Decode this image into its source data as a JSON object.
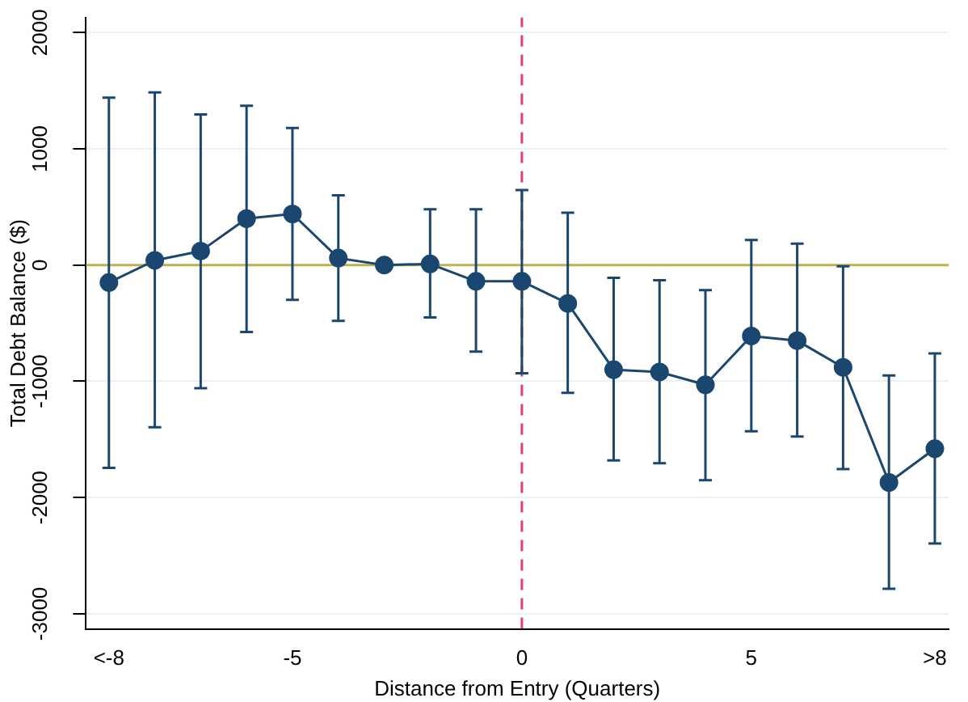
{
  "chart_data": {
    "type": "line",
    "xlabel": "Distance from Entry (Quarters)",
    "ylabel": "Total Debt Balance ($)",
    "x": [
      -9,
      -8,
      -7,
      -6,
      -5,
      -4,
      -3,
      -2,
      -1,
      0,
      1,
      2,
      3,
      4,
      5,
      6,
      7,
      8,
      9
    ],
    "series": [
      {
        "color": "#1a476f",
        "values": [
          -150,
          40,
          120,
          400,
          440,
          60,
          0,
          10,
          -140,
          -140,
          -330,
          -900,
          -920,
          -1030,
          -610,
          -650,
          -880,
          -1870,
          -1580
        ],
        "errors": [
          [
            -1745,
            1440
          ],
          [
            -1395,
            1485
          ],
          [
            -1060,
            1295
          ],
          [
            -575,
            1370
          ],
          [
            -300,
            1180
          ],
          [
            -480,
            600
          ],
          null,
          [
            -450,
            480
          ],
          [
            -745,
            480
          ],
          [
            -930,
            645
          ],
          [
            -1100,
            450
          ],
          [
            -1680,
            -110
          ],
          [
            -1705,
            -130
          ],
          [
            -1850,
            -215
          ],
          [
            -1430,
            215
          ],
          [
            -1475,
            185
          ],
          [
            -1755,
            -10
          ],
          [
            -2785,
            -950
          ],
          [
            -2395,
            -760
          ]
        ]
      }
    ],
    "xlim": [
      -9.5,
      9.3
    ],
    "xticks": [
      {
        "value": -9,
        "label": "<-8"
      },
      -5,
      0,
      5,
      {
        "value": 9,
        "label": ">8"
      }
    ],
    "ylim": [
      -3130,
      2130
    ],
    "yticks": [
      -3000,
      -2000,
      -1000,
      0,
      1000,
      2000
    ],
    "ref_lines": [
      {
        "axis": "y",
        "value": 0,
        "color": "#c0b050",
        "line_style": "solid"
      },
      {
        "axis": "x",
        "value": 0,
        "color": "#e0406a",
        "line_style": "dashed"
      }
    ],
    "grid": "y",
    "marker": "circle",
    "line_style": "solid",
    "legend": false
  }
}
